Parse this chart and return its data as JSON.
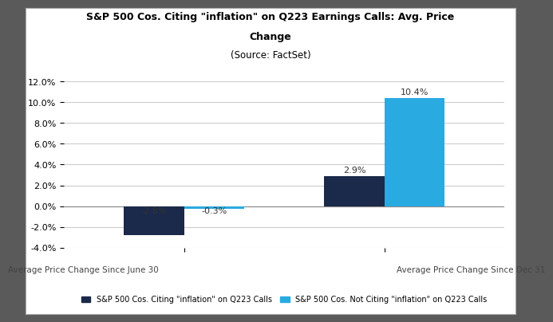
{
  "title_line1": "S&P 500 Cos. Citing \"inflation\" on Q223 Earnings Calls: Avg. Price",
  "title_line2": "Change",
  "title_line3": "(Source: FactSet)",
  "groups": [
    "Average Price Change Since June 30",
    "Average Price Change Since Dec 31"
  ],
  "series1_label": "S&P 500 Cos. Citing \"inflation\" on Q223 Calls",
  "series2_label": "S&P 500 Cos. Not Citing \"inflation\" on Q223 Calls",
  "series1_values": [
    -2.8,
    2.9
  ],
  "series2_values": [
    -0.3,
    10.4
  ],
  "series1_color": "#1b2a4a",
  "series2_color": "#29abe2",
  "ylim": [
    -4.0,
    12.0
  ],
  "yticks": [
    -4.0,
    -2.0,
    0.0,
    2.0,
    4.0,
    6.0,
    8.0,
    10.0,
    12.0
  ],
  "ytick_labels": [
    "-4.0%",
    "-2.0%",
    "0.0%",
    "2.0%",
    "4.0%",
    "6.0%",
    "8.0%",
    "10.0%",
    "12.0%"
  ],
  "bar_width": 0.3,
  "background_color": "#ffffff",
  "outer_bg": "#5a5a5a",
  "grid_color": "#cccccc",
  "label_fontsize": 8,
  "annotation_fontsize": 8,
  "group_label_fontsize": 7.5,
  "legend_fontsize": 7,
  "title_fontsize": 9,
  "border_color": "#aaaaaa"
}
